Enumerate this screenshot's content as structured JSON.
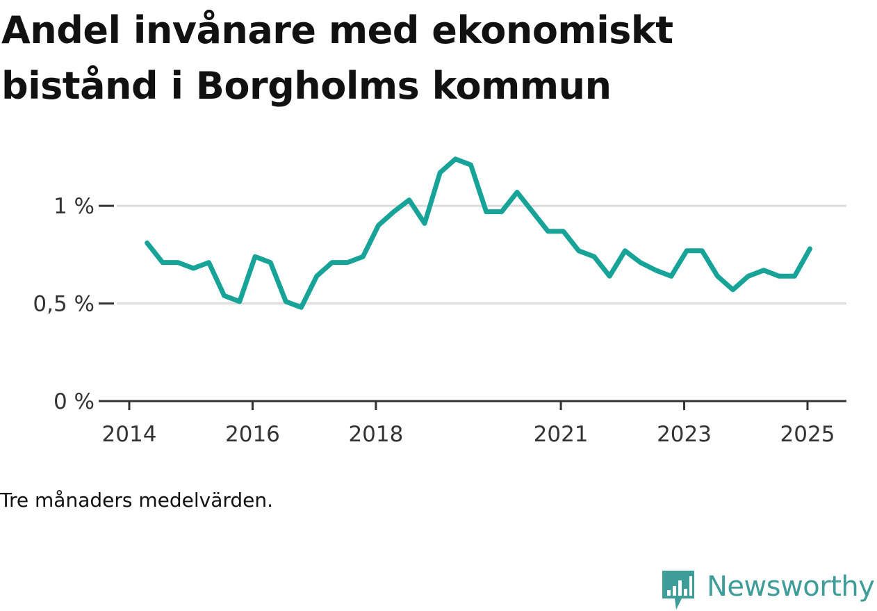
{
  "chart_data": {
    "type": "line",
    "title": "Andel invånare med ekonomiskt bistånd i Borgholms kommun",
    "note": "Tre månaders medelvärden.",
    "ylim": [
      0,
      1.2
    ],
    "yticks": [
      0,
      0.5,
      1
    ],
    "ytick_labels": [
      "0 %",
      "0,5 %",
      "1 %"
    ],
    "xlim": [
      2014.0,
      2025.34
    ],
    "xticks": [
      2014,
      2016,
      2018,
      2021,
      2023,
      2025
    ],
    "xtick_labels": [
      "2014",
      "2016",
      "2018",
      "2021",
      "2023",
      "2025"
    ],
    "grid": true,
    "line_color": "#17a398",
    "x": [
      2014.29,
      2014.54,
      2014.79,
      2015.04,
      2015.29,
      2015.54,
      2015.79,
      2016.04,
      2016.29,
      2016.54,
      2016.79,
      2017.04,
      2017.29,
      2017.54,
      2017.79,
      2018.04,
      2018.29,
      2018.54,
      2018.79,
      2019.04,
      2019.29,
      2019.54,
      2019.79,
      2020.04,
      2020.29,
      2020.54,
      2020.79,
      2021.04,
      2021.29,
      2021.54,
      2021.79,
      2022.04,
      2022.29,
      2022.54,
      2022.79,
      2023.04,
      2023.29,
      2023.54,
      2023.79,
      2024.04,
      2024.29,
      2024.54,
      2024.79,
      2025.04
    ],
    "values": [
      0.81,
      0.71,
      0.71,
      0.68,
      0.71,
      0.54,
      0.51,
      0.74,
      0.71,
      0.51,
      0.48,
      0.64,
      0.71,
      0.71,
      0.74,
      0.9,
      0.97,
      1.03,
      0.91,
      1.17,
      1.24,
      1.21,
      0.97,
      0.97,
      1.07,
      0.97,
      0.87,
      0.87,
      0.77,
      0.74,
      0.64,
      0.77,
      0.71,
      0.67,
      0.64,
      0.77,
      0.77,
      0.64,
      0.57,
      0.64,
      0.67,
      0.64,
      0.64,
      0.78
    ]
  },
  "brand": {
    "name": "Newsworthy",
    "color": "#3f9d99"
  }
}
